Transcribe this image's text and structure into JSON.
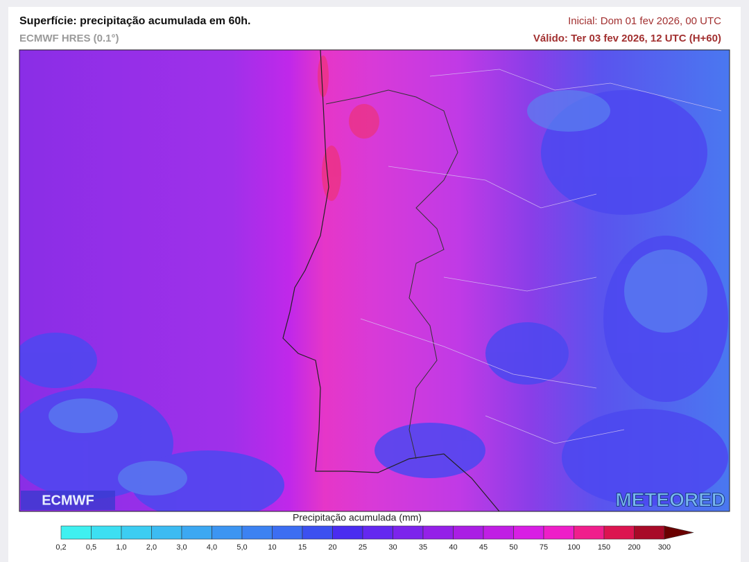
{
  "header": {
    "title": "Superfície: precipitação acumulada em 60h.",
    "model": "ECMWF HRES (0.1°)",
    "initial": "Inicial: Dom 01 fev 2026, 00 UTC",
    "valid": "Válido: Ter 03 fev 2026, 12 UTC (H+60)"
  },
  "map": {
    "logo_left": "ECMWF",
    "logo_right": "METEORED"
  },
  "colorbar": {
    "title": "Precipitação acumulada (mm)",
    "labels": [
      "0,2",
      "0,5",
      "1,0",
      "2,0",
      "3,0",
      "4,0",
      "5,0",
      "10",
      "15",
      "20",
      "25",
      "30",
      "35",
      "40",
      "45",
      "50",
      "75",
      "100",
      "150",
      "200",
      "300"
    ],
    "colors": [
      "#3ff0f0",
      "#3cdff2",
      "#3ccdf2",
      "#3cbbf2",
      "#3ca8f2",
      "#3c95f2",
      "#3c82f2",
      "#3c6ef2",
      "#3c50f0",
      "#4a2cf0",
      "#6428f0",
      "#7c24ec",
      "#9420e8",
      "#aa1ee4",
      "#c01ee4",
      "#d81ee4",
      "#ee1ec8",
      "#f01e8c",
      "#dc1450",
      "#a80a28",
      "#6a0000"
    ]
  }
}
